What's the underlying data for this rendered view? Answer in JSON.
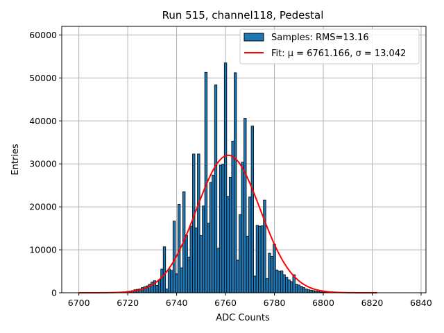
{
  "chart_data": {
    "type": "bar",
    "title": "Run 515, channel118, Pedestal",
    "xlabel": "ADC Counts",
    "ylabel": "Entries",
    "xlim": [
      6693,
      6842
    ],
    "ylim": [
      0,
      62000
    ],
    "xticks": [
      6700,
      6720,
      6740,
      6760,
      6780,
      6800,
      6820,
      6840
    ],
    "yticks": [
      0,
      10000,
      20000,
      30000,
      40000,
      50000,
      60000
    ],
    "grid": true,
    "legend_position": "top-right",
    "bar_color": "#1f77b4",
    "fit_color": "#ff0000",
    "histogram": {
      "name": "Samples: RMS=13.16",
      "bin_width": 1,
      "x": [
        6719,
        6720,
        6721,
        6722,
        6723,
        6724,
        6725,
        6726,
        6727,
        6728,
        6729,
        6730,
        6731,
        6732,
        6733,
        6734,
        6735,
        6736,
        6737,
        6738,
        6739,
        6740,
        6741,
        6742,
        6743,
        6744,
        6745,
        6746,
        6747,
        6748,
        6749,
        6750,
        6751,
        6752,
        6753,
        6754,
        6755,
        6756,
        6757,
        6758,
        6759,
        6760,
        6761,
        6762,
        6763,
        6764,
        6765,
        6766,
        6767,
        6768,
        6769,
        6770,
        6771,
        6772,
        6773,
        6774,
        6775,
        6776,
        6777,
        6778,
        6779,
        6780,
        6781,
        6782,
        6783,
        6784,
        6785,
        6786,
        6787,
        6788,
        6789,
        6790,
        6791,
        6792,
        6793,
        6794,
        6795,
        6796,
        6797,
        6798,
        6799,
        6800,
        6801,
        6802,
        6803,
        6804,
        6805,
        6806,
        6807,
        6808,
        6809,
        6810
      ],
      "values": [
        200,
        300,
        400,
        500,
        700,
        800,
        900,
        1200,
        1400,
        1600,
        2000,
        2500,
        2800,
        1700,
        3000,
        5500,
        10700,
        900,
        5500,
        5200,
        16700,
        4400,
        20600,
        5800,
        23500,
        13400,
        8300,
        15500,
        32300,
        15100,
        32300,
        13300,
        20200,
        51300,
        16200,
        25700,
        27400,
        48400,
        10400,
        29700,
        29900,
        53500,
        22400,
        26900,
        35300,
        51200,
        7600,
        18200,
        30400,
        40600,
        13200,
        22300,
        38800,
        3900,
        15700,
        15500,
        15600,
        21600,
        3300,
        9200,
        8500,
        11300,
        5300,
        5000,
        5100,
        4200,
        3600,
        3000,
        2600,
        4200,
        2000,
        1800,
        1500,
        1200,
        900,
        700,
        600,
        500,
        400,
        300,
        200,
        150,
        100,
        80,
        60,
        40,
        30,
        20,
        15,
        10,
        5,
        5
      ]
    },
    "fit": {
      "name": "Fit: μ = 6761.166, σ = 13.042",
      "mu": 6761.166,
      "sigma": 13.042,
      "amplitude": 32000,
      "x_range": [
        6700,
        6822
      ]
    }
  }
}
